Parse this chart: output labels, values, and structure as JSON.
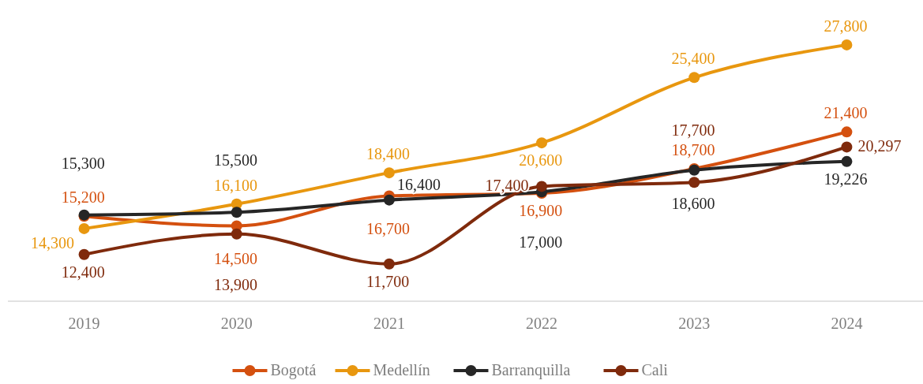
{
  "chart_data": {
    "type": "line",
    "categories": [
      "2019",
      "2020",
      "2021",
      "2022",
      "2023",
      "2024"
    ],
    "series": [
      {
        "name": "Bogotá",
        "color": "#d4500f",
        "values": [
          15200,
          14500,
          16700,
          16900,
          18700,
          21400
        ],
        "value_labels": [
          "15,200",
          "14,500",
          "16,700",
          "16,900",
          "18,700",
          "21,400"
        ]
      },
      {
        "name": "Medellín",
        "color": "#e8970f",
        "values": [
          14300,
          16100,
          18400,
          20600,
          25400,
          27800
        ],
        "value_labels": [
          "14,300",
          "16,100",
          "18,400",
          "20,600",
          "25,400",
          "27,800"
        ]
      },
      {
        "name": "Barranquilla",
        "color": "#262626",
        "values": [
          15300,
          15500,
          16400,
          17000,
          18600,
          19226
        ],
        "value_labels": [
          "15,300",
          "15,500",
          "16,400",
          "17,000",
          "18,600",
          "19,226"
        ]
      },
      {
        "name": "Cali",
        "color": "#7f2a0c",
        "values": [
          12400,
          13900,
          11700,
          17400,
          17700,
          20297
        ],
        "value_labels": [
          "12,400",
          "13,900",
          "11,700",
          "17,400",
          "17,700",
          "20,297"
        ]
      }
    ],
    "tick_labels": "x",
    "legend": "bottom",
    "marker": "circle",
    "line_style": "solid"
  }
}
